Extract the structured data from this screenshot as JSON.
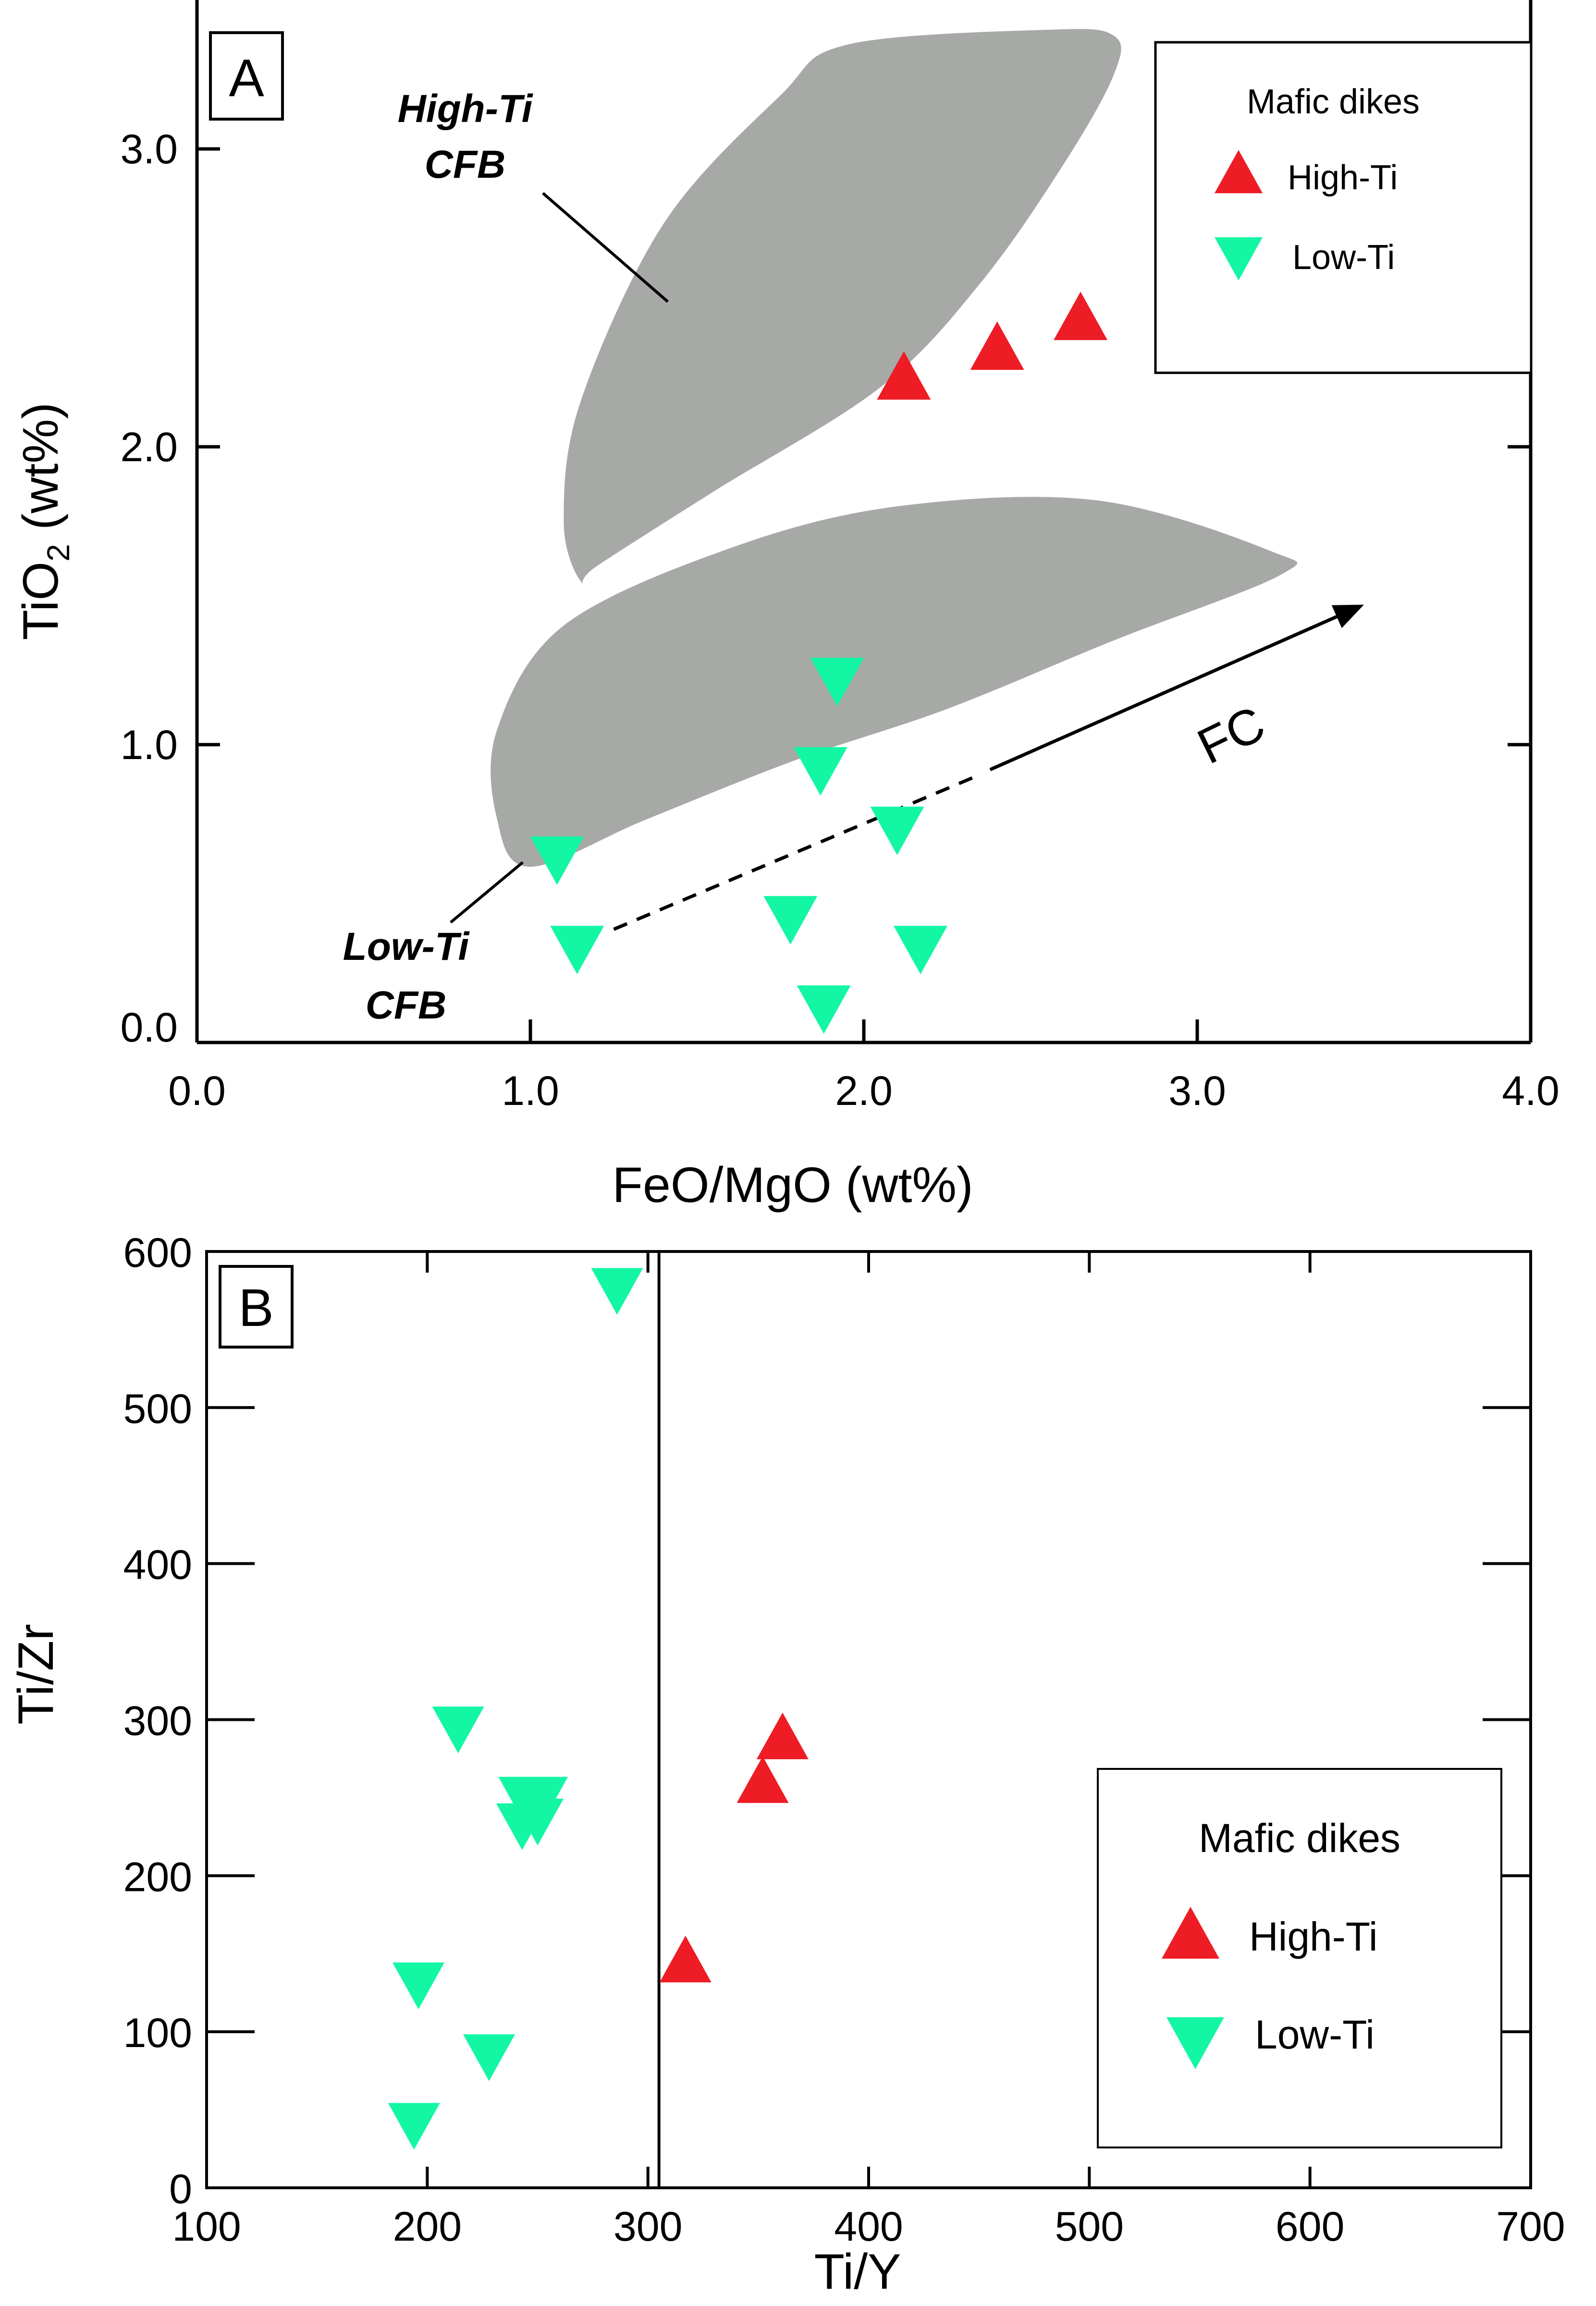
{
  "chart_data": [
    {
      "panel": "A",
      "type": "scatter",
      "xlabel": "FeO/MgO (wt%)",
      "ylabel_main": "TiO",
      "ylabel_sub": "2",
      "ylabel_unit": " (wt%)",
      "xlim": [
        0.0,
        4.0
      ],
      "ylim": [
        0.0,
        3.5
      ],
      "xticks": [
        "0.0",
        "1.0",
        "2.0",
        "3.0",
        "4.0"
      ],
      "yticks": [
        "0.0",
        "1.0",
        "2.0",
        "3.0"
      ],
      "xtick_values": [
        0,
        1,
        2,
        3,
        4
      ],
      "ytick_values": [
        0,
        1,
        2,
        3
      ],
      "legend": {
        "title": "Mafic dikes",
        "entries": [
          "High-Ti",
          "Low-Ti"
        ],
        "position": "top-right"
      },
      "fields": [
        {
          "name": "High-Ti CFB",
          "line1": "High-Ti",
          "line2": "CFB",
          "color": "#a7a9a7",
          "outline": [
            [
              1.15,
              1.55
            ],
            [
              1.2,
              1.6
            ],
            [
              1.55,
              1.85
            ],
            [
              2.05,
              2.2
            ],
            [
              2.35,
              2.55
            ],
            [
              2.6,
              2.95
            ],
            [
              2.75,
              3.25
            ],
            [
              2.75,
              3.38
            ],
            [
              2.55,
              3.4
            ],
            [
              1.95,
              3.35
            ],
            [
              1.75,
              3.18
            ],
            [
              1.4,
              2.75
            ],
            [
              1.15,
              2.15
            ],
            [
              1.1,
              1.75
            ]
          ]
        },
        {
          "name": "Low-Ti CFB",
          "line1": "Low-Ti",
          "line2": "CFB",
          "color": "#a7a9a7",
          "outline": [
            [
              1.0,
              0.59
            ],
            [
              1.35,
              0.75
            ],
            [
              1.8,
              0.95
            ],
            [
              2.25,
              1.12
            ],
            [
              2.75,
              1.35
            ],
            [
              3.25,
              1.57
            ],
            [
              3.22,
              1.65
            ],
            [
              2.7,
              1.82
            ],
            [
              2.1,
              1.8
            ],
            [
              1.6,
              1.66
            ],
            [
              1.1,
              1.4
            ],
            [
              0.9,
              1.05
            ],
            [
              0.9,
              0.75
            ]
          ]
        }
      ],
      "arrow": {
        "label": "FC",
        "dashed_from": [
          1.25,
          0.38
        ],
        "dashed_to": [
          2.35,
          0.9
        ],
        "solid_from": [
          2.35,
          0.9
        ],
        "solid_to": [
          3.5,
          1.47
        ]
      },
      "series": [
        {
          "name": "High-Ti",
          "marker": "triangle-up",
          "color": "#ee1c25",
          "points": [
            [
              2.12,
              2.22
            ],
            [
              2.4,
              2.32
            ],
            [
              2.65,
              2.42
            ]
          ]
        },
        {
          "name": "Low-Ti",
          "marker": "triangle-down",
          "color": "#13f7a5",
          "points": [
            [
              1.08,
              0.63
            ],
            [
              1.14,
              0.33
            ],
            [
              1.78,
              0.43
            ],
            [
              1.87,
              0.93
            ],
            [
              1.92,
              1.23
            ],
            [
              1.88,
              0.13
            ],
            [
              2.1,
              0.73
            ],
            [
              2.17,
              0.33
            ]
          ]
        }
      ]
    },
    {
      "panel": "B",
      "type": "scatter",
      "xlabel": "Ti/Y",
      "ylabel": "Ti/Zr",
      "xlim": [
        100,
        700
      ],
      "ylim": [
        0,
        600
      ],
      "xticks": [
        "100",
        "200",
        "300",
        "400",
        "500",
        "600",
        "700"
      ],
      "yticks": [
        "0",
        "100",
        "200",
        "300",
        "400",
        "500",
        "600"
      ],
      "xtick_values": [
        100,
        200,
        300,
        400,
        500,
        600,
        700
      ],
      "ytick_values": [
        0,
        100,
        200,
        300,
        400,
        500,
        600
      ],
      "divider_x": 305,
      "legend": {
        "title": "Mafic dikes",
        "entries": [
          "High-Ti",
          "Low-Ti"
        ],
        "position": "bottom-right"
      },
      "series": [
        {
          "name": "High-Ti",
          "marker": "triangle-up",
          "color": "#ee1c25",
          "points": [
            [
              317,
              143
            ],
            [
              352,
              258
            ],
            [
              361,
              286
            ]
          ]
        },
        {
          "name": "Low-Ti",
          "marker": "triangle-down",
          "color": "#13f7a5",
          "points": [
            [
              286,
              578
            ],
            [
              214,
              297
            ],
            [
              243,
              235
            ],
            [
              250,
              238
            ],
            [
              244,
              252
            ],
            [
              252,
              252
            ],
            [
              196,
              133
            ],
            [
              228,
              87
            ],
            [
              194,
              43
            ]
          ]
        }
      ]
    }
  ]
}
